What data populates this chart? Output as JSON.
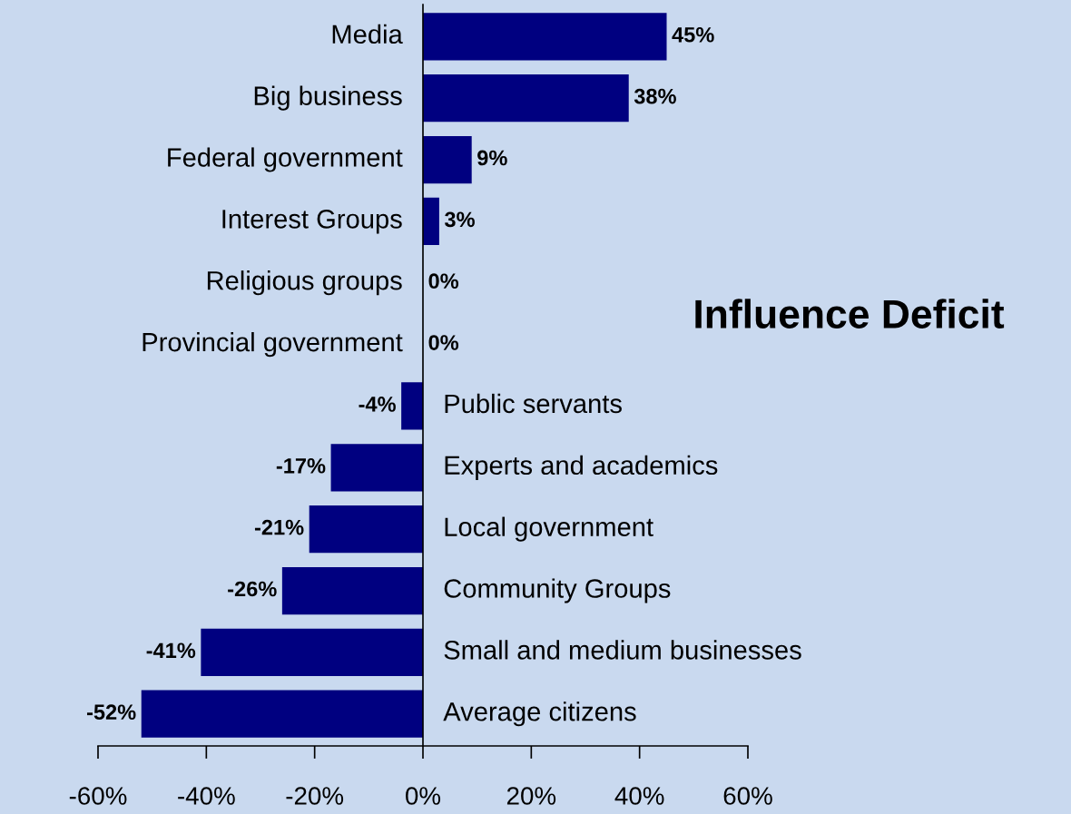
{
  "chart_data": {
    "type": "bar",
    "orientation": "horizontal",
    "title": "Influence Deficit",
    "categories": [
      "Media",
      "Big business",
      "Federal government",
      "Interest Groups",
      "Religious groups",
      "Provincial government",
      "Public servants",
      "Experts and academics",
      "Local government",
      "Community Groups",
      "Small and medium businesses",
      "Average citizens"
    ],
    "values": [
      45,
      38,
      9,
      3,
      0,
      0,
      -4,
      -17,
      -21,
      -26,
      -41,
      -52
    ],
    "value_labels": [
      "45%",
      "38%",
      "9%",
      "3%",
      "0%",
      "0%",
      "-4%",
      "-17%",
      "-21%",
      "-26%",
      "-41%",
      "-52%"
    ],
    "color": "#000080",
    "xlim": [
      -60,
      60
    ],
    "xticks": [
      {
        "value": -60,
        "label": "-60%"
      },
      {
        "value": -40,
        "label": "-40%"
      },
      {
        "value": -20,
        "label": "-20%"
      },
      {
        "value": 0,
        "label": "0%"
      },
      {
        "value": 20,
        "label": "20%"
      },
      {
        "value": 40,
        "label": "40%"
      },
      {
        "value": 60,
        "label": "60%"
      }
    ],
    "grid": false,
    "legend": false,
    "tick_labels": "x"
  }
}
